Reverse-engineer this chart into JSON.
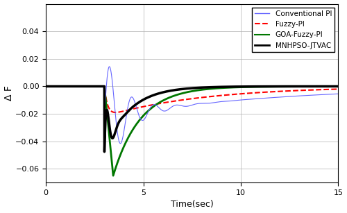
{
  "xlim": [
    0,
    15
  ],
  "ylim": [
    -0.07,
    0.06
  ],
  "xlabel": "Time(sec)",
  "ylabel": "Δ F",
  "xticks": [
    0,
    5,
    10,
    15
  ],
  "yticks": [
    -0.06,
    -0.04,
    -0.02,
    0,
    0.02,
    0.04
  ],
  "grid": true,
  "step_time": 3.0,
  "conv_pi": {
    "color": "#6666FF",
    "linewidth": 0.8,
    "linestyle": "solid",
    "label": "Conventional PI",
    "peak": 0.048,
    "omega": 5.5,
    "decay": 1.0,
    "dc_decay": 0.12
  },
  "fuzzy_pi": {
    "color": "#FF0000",
    "linewidth": 1.5,
    "linestyle": "dashed",
    "label": "Fuzzy-PI",
    "drop": -0.022,
    "fast_rise": 6.0,
    "slow_recover": 0.2
  },
  "goa_fuzzy": {
    "color": "#007700",
    "linewidth": 2.0,
    "linestyle": "solid",
    "label": "GOA-Fuzzy-PI",
    "trough": -0.065,
    "trough_t": 0.45,
    "recover": 0.72
  },
  "mnhpso": {
    "color": "#000000",
    "linewidth": 2.5,
    "linestyle": "solid",
    "label": "MNHPSO-JTVAC",
    "drop": -0.048,
    "fast": 18.0,
    "overshoot_amp": 0.058,
    "overshoot_decay": 5.5,
    "overshoot_omega": 9.0,
    "settle_decay": 0.8
  },
  "bg_color": "#ffffff"
}
